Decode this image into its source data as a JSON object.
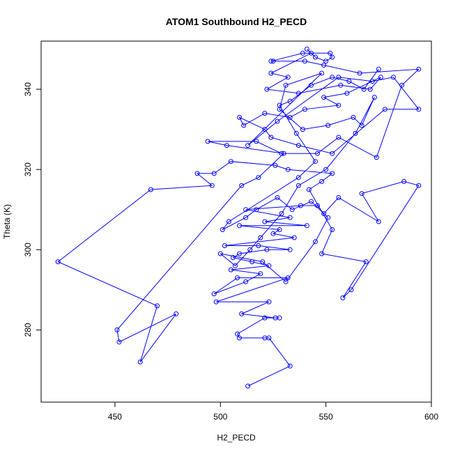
{
  "chart_data": {
    "type": "line",
    "title": "ATOM1 Southbound H2_PECD",
    "xlabel": "H2_PECD",
    "ylabel": "Theta (K)",
    "xlim": [
      415,
      600
    ],
    "ylim": [
      262,
      352
    ],
    "xticks": [
      450,
      500,
      550,
      600
    ],
    "yticks": [
      280,
      300,
      320,
      340
    ],
    "grid": false,
    "series": [
      {
        "color": "#0000ff",
        "marker": "open-circle",
        "points": [
          [
            513,
            266
          ],
          [
            533,
            271
          ],
          [
            523,
            278
          ],
          [
            521,
            278
          ],
          [
            509,
            278
          ],
          [
            508,
            279
          ],
          [
            521,
            283
          ],
          [
            528,
            283
          ],
          [
            526,
            283
          ],
          [
            510,
            284
          ],
          [
            523,
            287
          ],
          [
            498,
            287
          ],
          [
            532,
            293
          ],
          [
            508,
            293
          ],
          [
            497,
            289
          ],
          [
            512,
            292
          ],
          [
            519,
            294
          ],
          [
            505,
            295
          ],
          [
            523,
            296
          ],
          [
            515,
            297
          ],
          [
            506,
            298
          ],
          [
            509,
            299
          ],
          [
            522,
            300
          ],
          [
            533,
            300
          ],
          [
            518,
            301
          ],
          [
            502,
            301
          ],
          [
            535,
            303
          ],
          [
            525,
            304
          ],
          [
            528,
            305
          ],
          [
            509,
            306
          ],
          [
            541,
            306
          ],
          [
            521,
            307
          ],
          [
            533,
            308
          ],
          [
            512,
            310
          ],
          [
            538,
            311
          ],
          [
            546,
            311
          ],
          [
            549,
            309
          ],
          [
            556,
            313
          ],
          [
            575,
            307
          ],
          [
            567,
            314
          ],
          [
            587,
            317
          ],
          [
            594,
            316
          ],
          [
            562,
            290
          ],
          [
            558,
            288
          ],
          [
            569,
            297
          ],
          [
            548,
            299
          ],
          [
            553,
            305
          ],
          [
            542,
            315
          ],
          [
            548,
            317
          ],
          [
            553,
            319
          ],
          [
            532,
            320
          ],
          [
            526,
            321
          ],
          [
            505,
            322
          ],
          [
            497,
            319
          ],
          [
            489,
            319
          ],
          [
            496,
            316
          ],
          [
            467,
            315
          ],
          [
            423,
            297
          ],
          [
            470,
            286
          ],
          [
            462,
            272
          ],
          [
            479,
            284
          ],
          [
            452,
            277
          ],
          [
            451,
            280
          ],
          [
            510,
            316
          ],
          [
            518,
            318
          ],
          [
            530,
            324
          ],
          [
            503,
            326
          ],
          [
            494,
            327
          ],
          [
            517,
            327
          ],
          [
            529,
            324
          ],
          [
            546,
            324
          ],
          [
            556,
            328
          ],
          [
            574,
            323
          ],
          [
            586,
            341
          ],
          [
            594,
            345
          ],
          [
            566,
            344
          ],
          [
            549,
            346
          ],
          [
            540,
            347
          ],
          [
            525,
            347
          ],
          [
            524,
            347
          ],
          [
            539,
            349
          ],
          [
            552,
            349
          ],
          [
            553,
            348
          ],
          [
            550,
            347
          ],
          [
            545,
            348
          ],
          [
            541,
            350
          ],
          [
            543,
            349
          ],
          [
            524,
            344
          ],
          [
            532,
            343
          ],
          [
            522,
            340
          ],
          [
            537,
            339
          ],
          [
            557,
            341
          ],
          [
            571,
            340
          ],
          [
            576,
            343
          ],
          [
            560,
            339
          ],
          [
            549,
            338
          ],
          [
            556,
            336
          ],
          [
            540,
            335
          ],
          [
            533,
            333
          ],
          [
            521,
            334
          ],
          [
            511,
            331
          ],
          [
            509,
            333
          ],
          [
            521,
            330
          ],
          [
            524,
            328
          ],
          [
            537,
            326
          ],
          [
            553,
            324
          ],
          [
            578,
            335
          ],
          [
            594,
            335
          ],
          [
            582,
            343
          ],
          [
            572,
            342
          ],
          [
            556,
            343
          ],
          [
            527,
            332
          ],
          [
            513,
            326
          ],
          [
            548,
            344
          ],
          [
            531,
            341
          ],
          [
            528,
            335
          ],
          [
            539,
            330
          ],
          [
            551,
            331
          ],
          [
            563,
            333
          ],
          [
            567,
            331
          ],
          [
            573,
            338
          ],
          [
            564,
            329
          ],
          [
            550,
            320
          ],
          [
            537,
            316
          ],
          [
            529,
            309
          ],
          [
            519,
            303
          ],
          [
            514,
            300
          ],
          [
            507,
            296
          ],
          [
            500,
            299
          ],
          [
            520,
            297
          ],
          [
            531,
            292
          ],
          [
            545,
            302
          ],
          [
            551,
            308
          ],
          [
            543,
            312
          ],
          [
            534,
            310
          ],
          [
            527,
            313
          ],
          [
            517,
            310
          ],
          [
            512,
            308
          ],
          [
            501,
            305
          ],
          [
            504,
            307
          ],
          [
            537,
            318
          ],
          [
            545,
            322
          ],
          [
            536,
            329
          ],
          [
            528,
            336
          ],
          [
            533,
            337
          ],
          [
            543,
            341
          ],
          [
            553,
            343
          ],
          [
            561,
            342
          ],
          [
            568,
            340
          ],
          [
            575,
            345
          ]
        ]
      }
    ]
  }
}
